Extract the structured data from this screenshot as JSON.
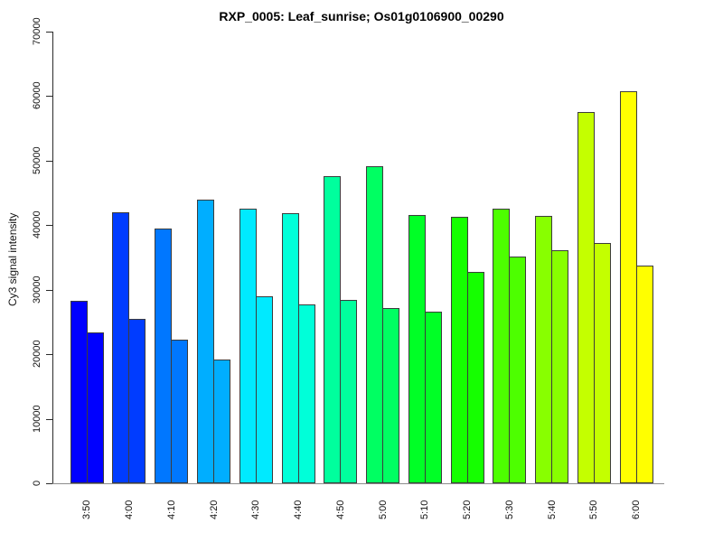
{
  "chart_data": {
    "type": "bar",
    "title": "RXP_0005: Leaf_sunrise; Os01g0106900_00290",
    "ylabel": "Cy3 signal intensity",
    "xlabel": "",
    "ylim": [
      0,
      70000
    ],
    "ytick_step": 10000,
    "ytick_labels": [
      "0",
      "10000",
      "20000",
      "30000",
      "40000",
      "50000",
      "60000",
      "70000"
    ],
    "grid": false,
    "legend": "none",
    "categories": [
      "3:50",
      "4:00",
      "4:10",
      "4:20",
      "4:30",
      "4:40",
      "4:50",
      "5:00",
      "5:10",
      "5:20",
      "5:30",
      "5:40",
      "5:50",
      "6:00"
    ],
    "series": [
      {
        "values": [
          28200,
          42000,
          39400,
          43900,
          42500,
          41800,
          47600,
          49100,
          41600,
          41300,
          42500,
          41400,
          57500,
          60700
        ]
      },
      {
        "values": [
          23400,
          25500,
          22200,
          19100,
          28900,
          27700,
          28400,
          27200,
          26600,
          32700,
          35100,
          36100,
          37200,
          33700
        ]
      }
    ],
    "group_colors": [
      "#0000FF",
      "#003CFF",
      "#0077FF",
      "#00AEFF",
      "#00EAFF",
      "#00FFD9",
      "#00FF9D",
      "#00FF62",
      "#00FF26",
      "#15FF00",
      "#4DFF00",
      "#88FF00",
      "#C4FF00",
      "#FFFF00"
    ],
    "bar_border_color": "#3c3c3c",
    "axis_color": "#2a2a2a",
    "baseline_color": "#8c8c8c",
    "text_color": "#111111",
    "background": "#ffffff"
  }
}
